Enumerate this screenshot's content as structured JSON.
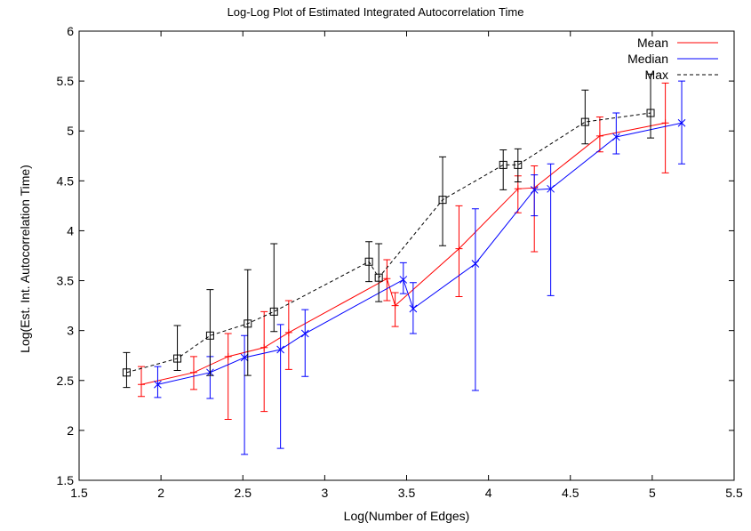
{
  "chart_data": {
    "type": "line",
    "title": "Log-Log Plot of Estimated Integrated Autocorrelation Time",
    "xlabel": "Log(Number of Edges)",
    "ylabel": "Log(Est. Int. Autocorrelation Time)",
    "xlim": [
      1.5,
      5.5
    ],
    "ylim": [
      1.5,
      6
    ],
    "xticks": [
      "1.5",
      "2",
      "2.5",
      "3",
      "3.5",
      "4",
      "4.5",
      "5",
      "5.5"
    ],
    "yticks": [
      "1.5",
      "2",
      "2.5",
      "3",
      "3.5",
      "4",
      "4.5",
      "5",
      "5.5",
      "6"
    ],
    "grid": false,
    "legend_position": "top-right",
    "series": [
      {
        "name": "Mean",
        "color": "#ff0000",
        "dash": "solid",
        "marker": "plus",
        "points": [
          {
            "x": 1.88,
            "y": 2.46,
            "lo": 2.34,
            "hi": 2.64
          },
          {
            "x": 2.2,
            "y": 2.58,
            "lo": 2.41,
            "hi": 2.74
          },
          {
            "x": 2.41,
            "y": 2.74,
            "lo": 2.11,
            "hi": 2.97
          },
          {
            "x": 2.63,
            "y": 2.83,
            "lo": 2.19,
            "hi": 3.19
          },
          {
            "x": 2.78,
            "y": 2.98,
            "lo": 2.61,
            "hi": 3.3
          },
          {
            "x": 3.38,
            "y": 3.52,
            "lo": 3.3,
            "hi": 3.71
          },
          {
            "x": 3.43,
            "y": 3.25,
            "lo": 3.04,
            "hi": 3.38
          },
          {
            "x": 3.82,
            "y": 3.82,
            "lo": 3.34,
            "hi": 4.25
          },
          {
            "x": 4.18,
            "y": 4.42,
            "lo": 4.18,
            "hi": 4.55
          },
          {
            "x": 4.28,
            "y": 4.43,
            "lo": 3.79,
            "hi": 4.65
          },
          {
            "x": 4.68,
            "y": 4.95,
            "lo": 4.79,
            "hi": 5.14
          },
          {
            "x": 5.08,
            "y": 5.08,
            "lo": 4.58,
            "hi": 5.48
          }
        ]
      },
      {
        "name": "Median",
        "color": "#0000ff",
        "dash": "solid",
        "marker": "cross",
        "points": [
          {
            "x": 1.98,
            "y": 2.46,
            "lo": 2.33,
            "hi": 2.64
          },
          {
            "x": 2.3,
            "y": 2.58,
            "lo": 2.32,
            "hi": 2.74
          },
          {
            "x": 2.51,
            "y": 2.73,
            "lo": 1.76,
            "hi": 2.95
          },
          {
            "x": 2.73,
            "y": 2.81,
            "lo": 1.82,
            "hi": 3.06
          },
          {
            "x": 2.88,
            "y": 2.97,
            "lo": 2.54,
            "hi": 3.21
          },
          {
            "x": 3.48,
            "y": 3.51,
            "lo": 3.37,
            "hi": 3.68
          },
          {
            "x": 3.54,
            "y": 3.22,
            "lo": 2.97,
            "hi": 3.48
          },
          {
            "x": 3.92,
            "y": 3.67,
            "lo": 2.4,
            "hi": 4.22
          },
          {
            "x": 4.28,
            "y": 4.41,
            "lo": 4.15,
            "hi": 4.56
          },
          {
            "x": 4.38,
            "y": 4.42,
            "lo": 3.35,
            "hi": 4.67
          },
          {
            "x": 4.78,
            "y": 4.94,
            "lo": 4.77,
            "hi": 5.18
          },
          {
            "x": 5.18,
            "y": 5.08,
            "lo": 4.67,
            "hi": 5.5
          }
        ]
      },
      {
        "name": "Max",
        "color": "#000000",
        "dash": "dashed",
        "marker": "square",
        "points": [
          {
            "x": 1.79,
            "y": 2.58,
            "lo": 2.43,
            "hi": 2.78
          },
          {
            "x": 2.1,
            "y": 2.72,
            "lo": 2.6,
            "hi": 3.05
          },
          {
            "x": 2.3,
            "y": 2.95,
            "lo": 2.55,
            "hi": 3.41
          },
          {
            "x": 2.53,
            "y": 3.07,
            "lo": 2.55,
            "hi": 3.61
          },
          {
            "x": 2.69,
            "y": 3.19,
            "lo": 2.99,
            "hi": 3.87
          },
          {
            "x": 3.27,
            "y": 3.69,
            "lo": 3.49,
            "hi": 3.89
          },
          {
            "x": 3.33,
            "y": 3.53,
            "lo": 3.29,
            "hi": 3.87
          },
          {
            "x": 3.72,
            "y": 4.31,
            "lo": 3.85,
            "hi": 4.74
          },
          {
            "x": 4.09,
            "y": 4.66,
            "lo": 4.41,
            "hi": 4.81
          },
          {
            "x": 4.18,
            "y": 4.66,
            "lo": 4.49,
            "hi": 4.82
          },
          {
            "x": 4.59,
            "y": 5.09,
            "lo": 4.87,
            "hi": 5.41
          },
          {
            "x": 4.99,
            "y": 5.18,
            "lo": 4.93,
            "hi": 5.57
          }
        ]
      }
    ]
  }
}
